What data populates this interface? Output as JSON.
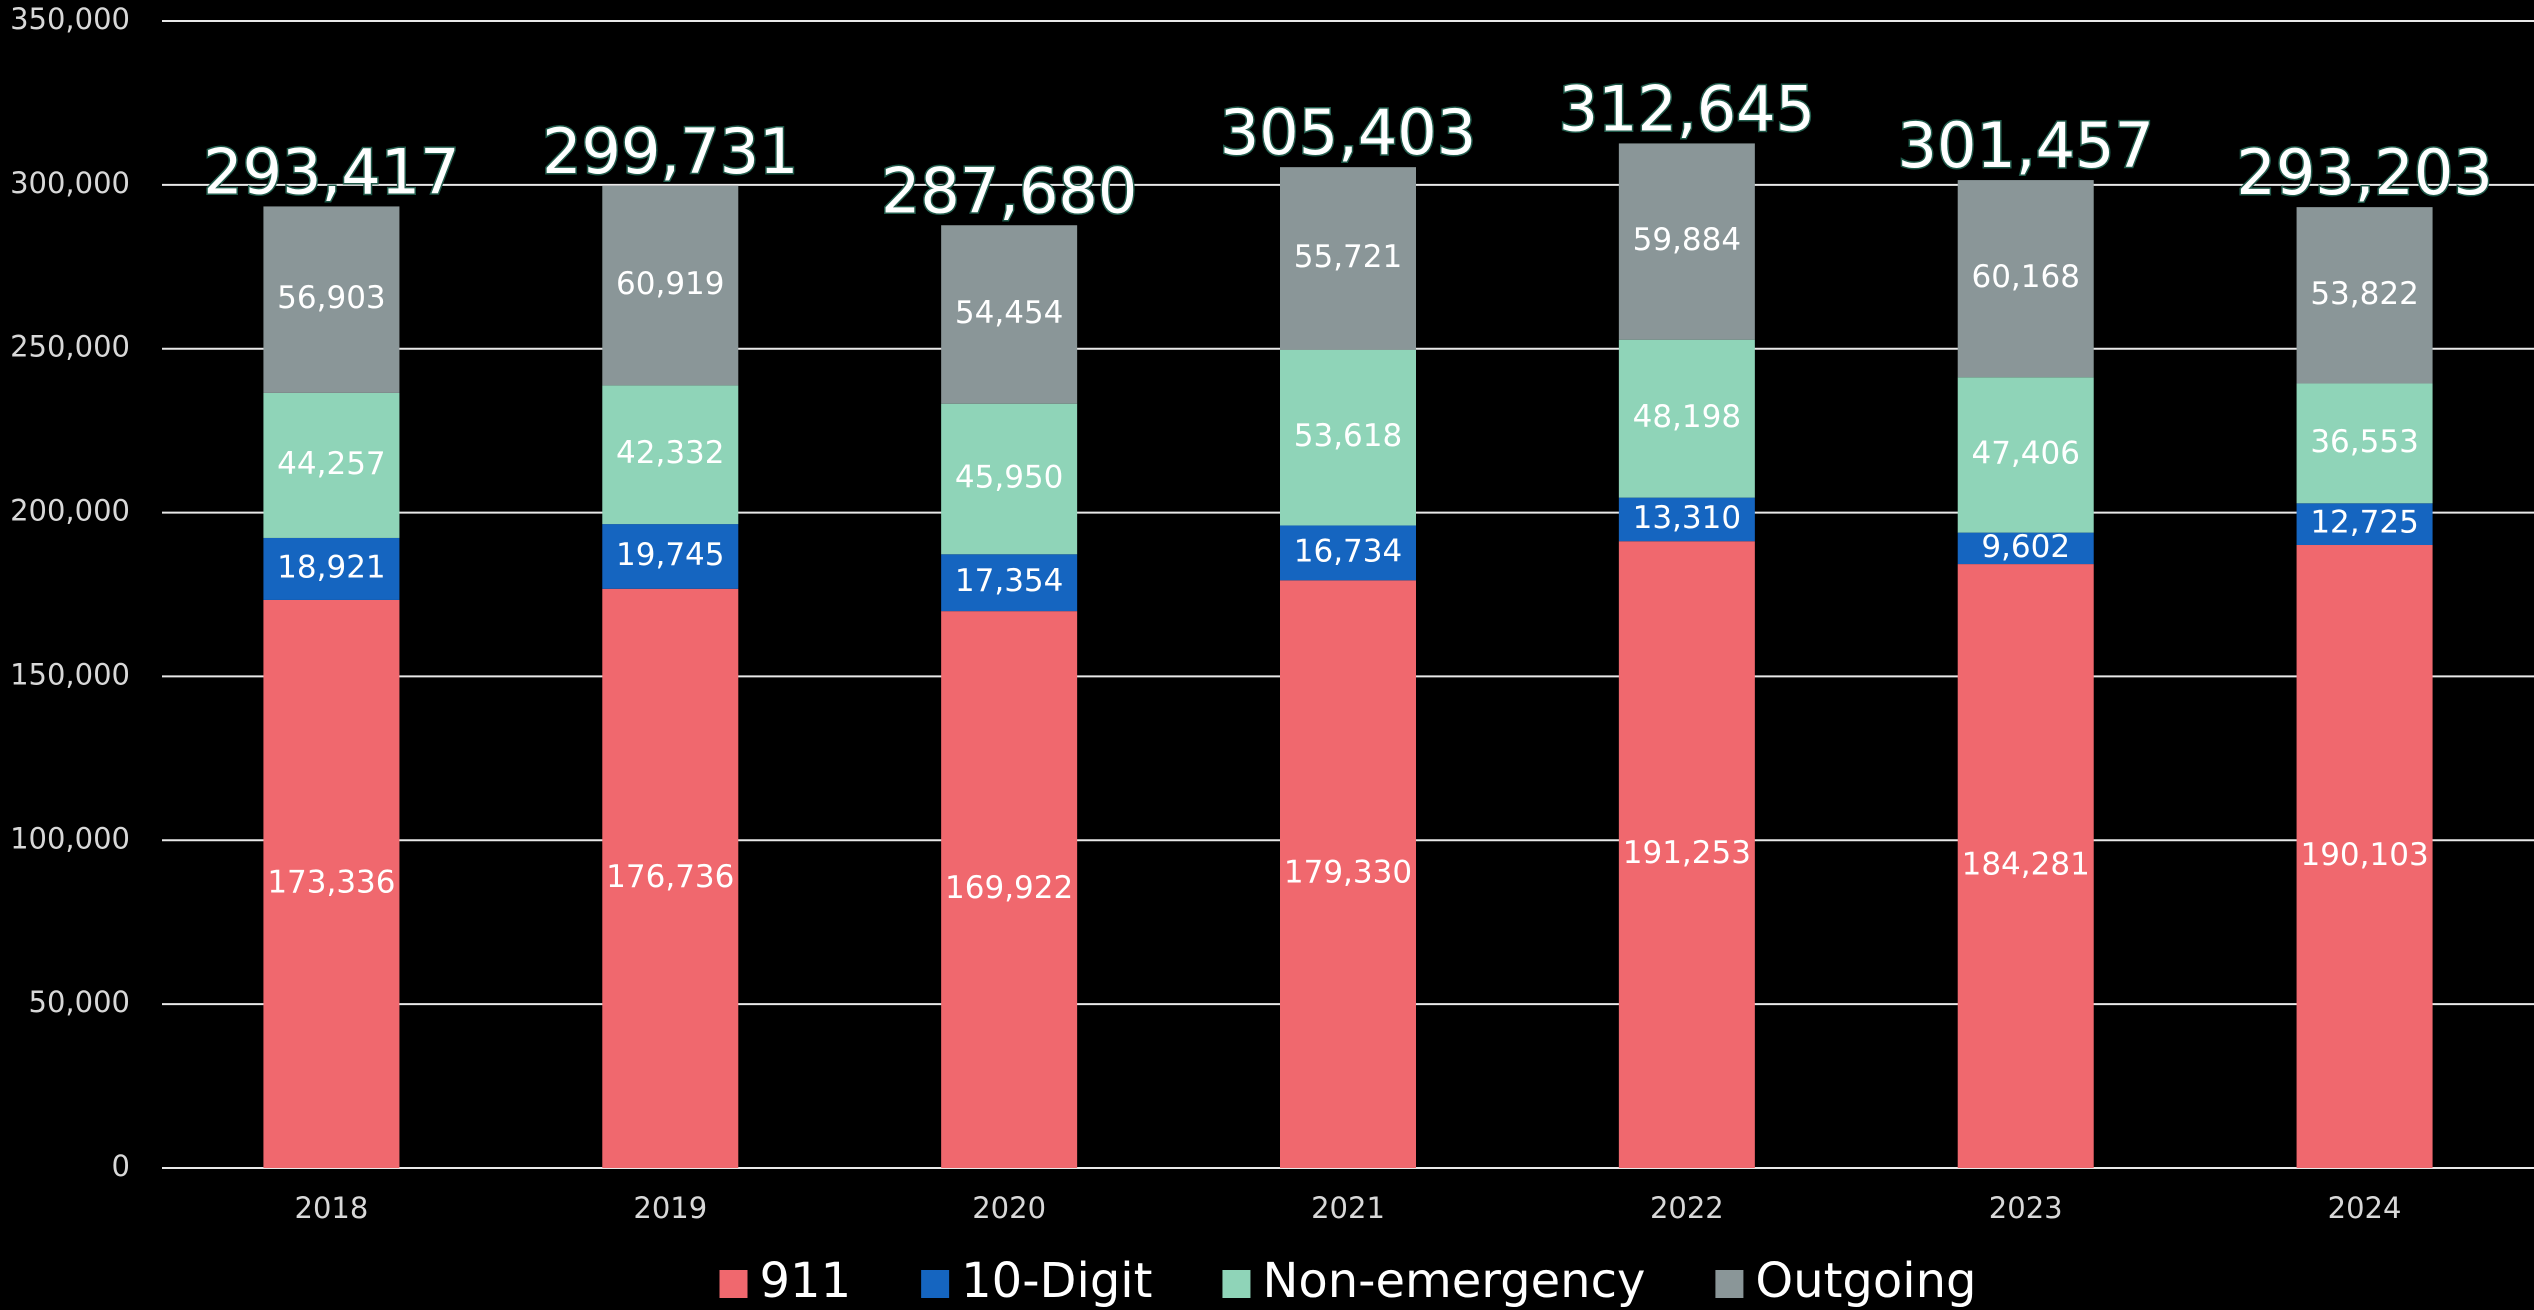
{
  "chart_data": {
    "type": "stacked_bar",
    "categories": [
      "2018",
      "2019",
      "2020",
      "2021",
      "2022",
      "2023",
      "2024"
    ],
    "series": [
      {
        "name": "911",
        "color": "#f0686e",
        "values": [
          173336,
          176736,
          169922,
          179330,
          191253,
          184281,
          190103
        ],
        "value_labels": [
          "173,336",
          "176,736",
          "169,922",
          "179,330",
          "191,253",
          "184,281",
          "190,103"
        ]
      },
      {
        "name": "10-Digit",
        "color": "#1565c0",
        "values": [
          18921,
          19745,
          17354,
          16734,
          13310,
          9602,
          12725
        ],
        "value_labels": [
          "18,921",
          "19,745",
          "17,354",
          "16,734",
          "13,310",
          "9,602",
          "12,725"
        ]
      },
      {
        "name": "Non-emergency",
        "color": "#8fd4b8",
        "values": [
          44257,
          42332,
          45950,
          53618,
          48198,
          47406,
          36553
        ],
        "value_labels": [
          "44,257",
          "42,332",
          "45,950",
          "53,618",
          "48,198",
          "47,406",
          "36,553"
        ]
      },
      {
        "name": "Outgoing",
        "color": "#8a9698",
        "values": [
          56903,
          60919,
          54454,
          55721,
          59884,
          60168,
          53822
        ],
        "value_labels": [
          "56,903",
          "60,919",
          "54,454",
          "55,721",
          "59,884",
          "60,168",
          "53,822"
        ]
      }
    ],
    "totals": [
      293417,
      299731,
      287680,
      305403,
      312645,
      301457,
      293203
    ],
    "total_labels": [
      "293,417",
      "299,731",
      "287,680",
      "305,403",
      "312,645",
      "301,457",
      "293,203"
    ],
    "ylim": [
      0,
      350000
    ],
    "yticks": [
      0,
      {
        "value": 50000,
        "label": "50,000"
      },
      {
        "value": 100000,
        "label": "100,000"
      },
      {
        "value": 150000,
        "label": "150,000"
      },
      {
        "value": 200000,
        "label": "200,000"
      },
      {
        "value": 250000,
        "label": "250,000"
      },
      {
        "value": 300000,
        "label": "300,000"
      },
      {
        "value": 350000,
        "label": "350,000"
      }
    ],
    "grid": true,
    "legend": "bottom"
  }
}
